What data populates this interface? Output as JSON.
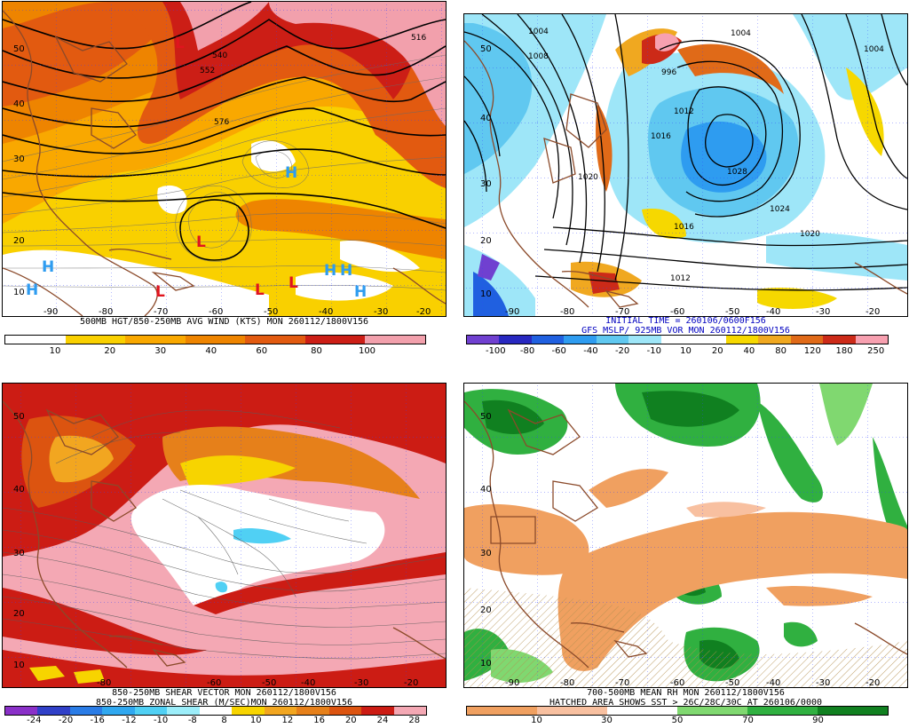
{
  "colors": {
    "wind": [
      "#ffffff",
      "#f9d000",
      "#f9a800",
      "#ee8400",
      "#e25a10",
      "#cc1e16",
      "#f2a0ac"
    ],
    "vort": [
      "#7040d0",
      "#2828c0",
      "#2060e0",
      "#2e9cf0",
      "#60c8f0",
      "#9ee6f8",
      "#ffffff",
      "#ffffff",
      "#f6d800",
      "#f0a820",
      "#e06a18",
      "#cc2a18",
      "#f7a0b0"
    ],
    "shear": [
      "#8a30c8",
      "#3040c8",
      "#2a7ce6",
      "#30a8f0",
      "#50d0f4",
      "#9ceefa",
      "#ffffff",
      "#f7d400",
      "#f2a620",
      "#e6801a",
      "#dc5410",
      "#cc1c14",
      "#f4a8b4"
    ],
    "rh": [
      "#f0a060",
      "#f8c0a0",
      "#ffffff",
      "#80d870",
      "#30b040",
      "#108020"
    ]
  },
  "panels": [
    {
      "id": "tl",
      "caption": [
        "500MB HGT/850-250MB AVG WIND (KTS) MON 260112/1800V156"
      ],
      "lat_labels": [
        "50",
        "40",
        "30",
        "20",
        "10"
      ],
      "lon_labels": [
        "-90",
        "-80",
        "-70",
        "-60",
        "-50",
        "-40",
        "-30",
        "-20"
      ],
      "contour_labels": [
        "516",
        "540",
        "552",
        "576"
      ],
      "highs": [
        "H",
        "H",
        "H",
        "H",
        "H",
        "H"
      ],
      "lows": [
        "L",
        "L",
        "L",
        "L",
        "L"
      ],
      "colorbar": {
        "labels": [
          "10",
          "20",
          "30",
          "40",
          "60",
          "80",
          "100"
        ]
      }
    },
    {
      "id": "tr",
      "caption": [
        "INITIAL TIME = 260106/0600F156",
        "GFS MSLP/ 925MB VOR MON 260112/1800V156"
      ],
      "lat_labels": [
        "50",
        "40",
        "30",
        "20",
        "10"
      ],
      "lon_labels": [
        "-90",
        "-80",
        "-70",
        "-60",
        "-50",
        "-40",
        "-30",
        "-20"
      ],
      "contour_labels": [
        "1004",
        "1008",
        "1004",
        "1012",
        "996",
        "1016",
        "1020",
        "1028",
        "1024",
        "1020",
        "1016",
        "1012",
        "1004"
      ],
      "colorbar": {
        "labels": [
          "-100",
          "-80",
          "-60",
          "-40",
          "-20",
          "-10",
          "10",
          "20",
          "40",
          "80",
          "120",
          "180",
          "250"
        ]
      }
    },
    {
      "id": "bl",
      "caption": [
        "850-250MB SHEAR VECTOR MON 260112/1800V156",
        "850-250MB ZONAL SHEAR (M/SEC)MON 260112/1800V156"
      ],
      "lat_labels": [
        "50",
        "40",
        "30",
        "20",
        "10"
      ],
      "lon_labels": [
        "-80",
        "-60",
        "-50",
        "-40",
        "-30",
        "-20"
      ],
      "colorbar": {
        "labels": [
          "-24",
          "-20",
          "-16",
          "-12",
          "-10",
          "-8",
          "8",
          "10",
          "12",
          "16",
          "20",
          "24",
          "28"
        ]
      }
    },
    {
      "id": "br",
      "caption": [
        "700-500MB MEAN RH MON 260112/1800V156",
        "HATCHED AREA SHOWS SST > 26C/28C/30C AT 260106/0000"
      ],
      "lat_labels": [
        "50",
        "40",
        "30",
        "20",
        "10"
      ],
      "lon_labels": [
        "-90",
        "-80",
        "-70",
        "-60",
        "-50",
        "-40",
        "-30",
        "-20"
      ],
      "colorbar": {
        "labels": [
          "10",
          "30",
          "50",
          "70",
          "90"
        ]
      }
    }
  ]
}
